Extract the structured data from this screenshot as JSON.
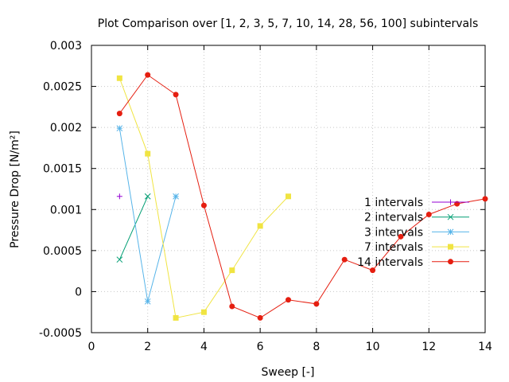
{
  "chart_data": {
    "type": "line",
    "title": "Plot Comparison over [1, 2, 3, 5, 7, 10, 14, 28, 56, 100] subintervals",
    "xlabel": "Sweep [-]",
    "ylabel": "Pressure Drop [N/m²]",
    "xlim": [
      0,
      14
    ],
    "ylim": [
      -0.0005,
      0.003
    ],
    "xticks": [
      "0",
      "2",
      "4",
      "6",
      "8",
      "10",
      "12",
      "14"
    ],
    "xtick_values": [
      0,
      2,
      4,
      6,
      8,
      10,
      12,
      14
    ],
    "yticks": [
      "-0.0005",
      "0",
      "0.0005",
      "0.001",
      "0.0015",
      "0.002",
      "0.0025",
      "0.003"
    ],
    "ytick_values": [
      -0.0005,
      0,
      0.0005,
      0.001,
      0.0015,
      0.002,
      0.0025,
      0.003
    ],
    "grid": true,
    "legend_position": "right",
    "series": [
      {
        "name": "1 intervals",
        "color": "#9400d3",
        "marker": "plus",
        "x": [
          1
        ],
        "y": [
          0.00116
        ]
      },
      {
        "name": "2 intervals",
        "color": "#009e73",
        "marker": "cross",
        "x": [
          1,
          2
        ],
        "y": [
          0.00039,
          0.00116
        ]
      },
      {
        "name": "3 intervals",
        "color": "#56b4e9",
        "marker": "star",
        "x": [
          1,
          2,
          3
        ],
        "y": [
          0.00199,
          -0.00012,
          0.00116
        ]
      },
      {
        "name": "7 intervals",
        "color": "#f0e442",
        "marker": "square",
        "x": [
          1,
          2,
          3,
          4,
          5,
          6,
          7
        ],
        "y": [
          0.0026,
          0.00168,
          -0.00032,
          -0.00025,
          0.00026,
          0.0008,
          0.00116
        ]
      },
      {
        "name": "14 intervals",
        "color": "#e51e10",
        "marker": "circle",
        "x": [
          1,
          2,
          3,
          4,
          5,
          6,
          7,
          8,
          9,
          10,
          11,
          12,
          13,
          14
        ],
        "y": [
          0.00217,
          0.00264,
          0.0024,
          0.00105,
          -0.00018,
          -0.00032,
          -0.0001,
          -0.00015,
          0.00039,
          0.00026,
          0.00067,
          0.00094,
          0.00107,
          0.00113
        ]
      }
    ]
  }
}
